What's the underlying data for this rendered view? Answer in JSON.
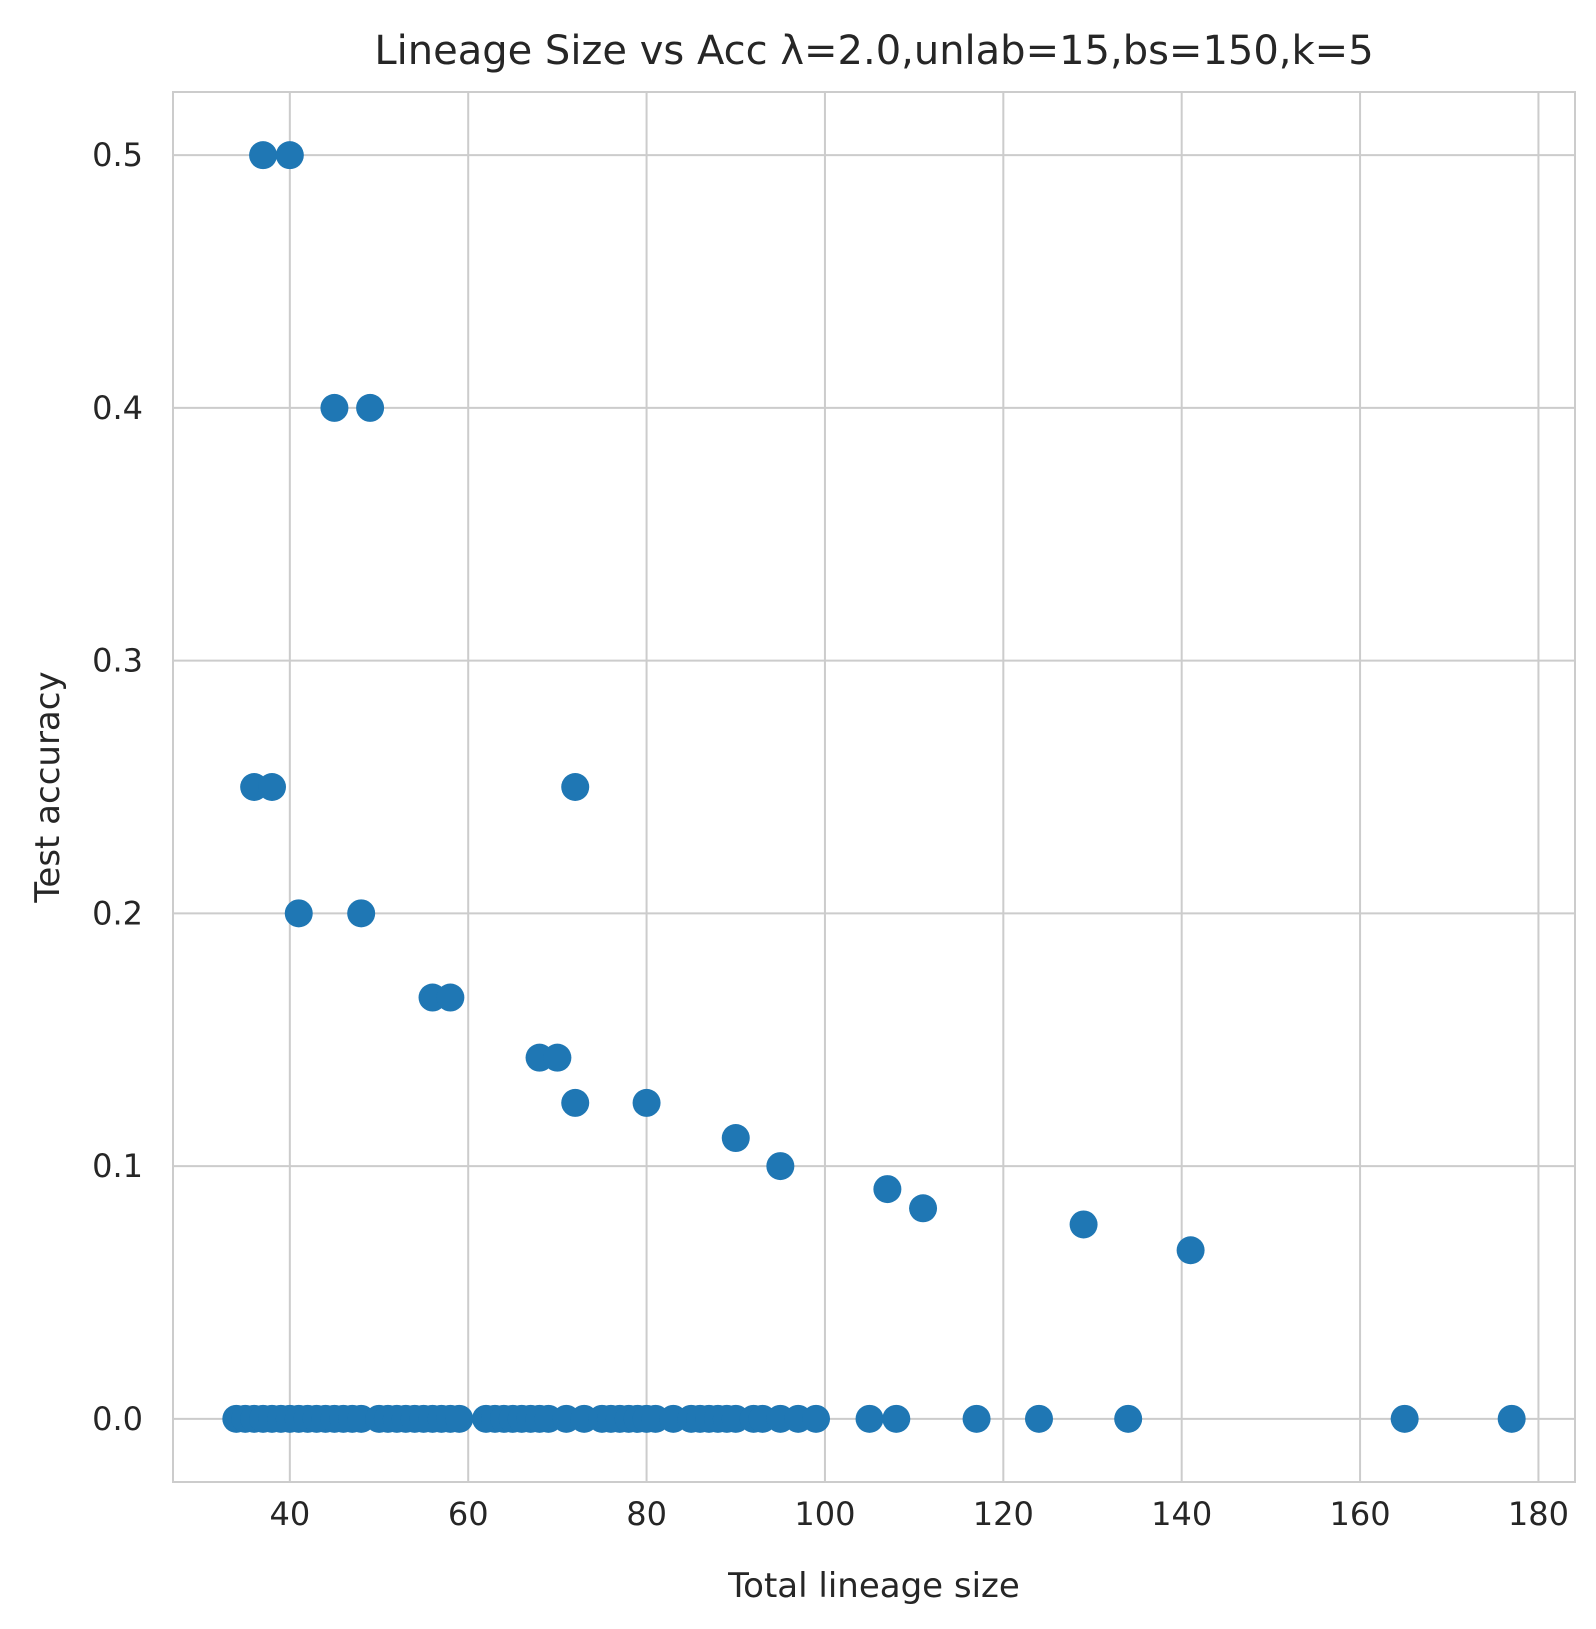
{
  "chart_data": {
    "type": "scatter",
    "title": "Lineage Size vs Acc λ=2.0,unlab=15,bs=150,k=5",
    "xlabel": "Total lineage size",
    "ylabel": "Test accuracy",
    "xlim": [
      26.9,
      184.1
    ],
    "ylim": [
      -0.025,
      0.525
    ],
    "xticks": [
      40,
      60,
      80,
      100,
      120,
      140,
      160,
      180
    ],
    "yticks": [
      0.0,
      0.1,
      0.2,
      0.3,
      0.4,
      0.5
    ],
    "xtick_labels": [
      "40",
      "60",
      "80",
      "100",
      "120",
      "140",
      "160",
      "180"
    ],
    "ytick_labels": [
      "0.0",
      "0.1",
      "0.2",
      "0.3",
      "0.4",
      "0.5"
    ],
    "grid": true,
    "colors": {
      "points": "#1f77b4",
      "grid": "#cccccc",
      "axes_edge": "#cccccc",
      "text": "#262626"
    },
    "series": [
      {
        "x": [
          37,
          40,
          45,
          49,
          36,
          38,
          72,
          41,
          48,
          56,
          58,
          68,
          70,
          72,
          80,
          90,
          95,
          107,
          111,
          129,
          141,
          34,
          35,
          36,
          37,
          38,
          39,
          40,
          41,
          42,
          43,
          44,
          45,
          46,
          47,
          48,
          50,
          51,
          52,
          53,
          54,
          55,
          56,
          57,
          58,
          59,
          62,
          63,
          64,
          65,
          66,
          67,
          68,
          69,
          71,
          73,
          75,
          76,
          77,
          78,
          79,
          80,
          81,
          83,
          85,
          86,
          87,
          88,
          89,
          90,
          92,
          93,
          95,
          97,
          99,
          105,
          108,
          117,
          124,
          134,
          165,
          177
        ],
        "y": [
          0.5,
          0.5,
          0.4,
          0.4,
          0.25,
          0.25,
          0.25,
          0.2,
          0.2,
          0.1667,
          0.1667,
          0.1429,
          0.1429,
          0.125,
          0.125,
          0.1111,
          0.1,
          0.0909,
          0.0833,
          0.0769,
          0.0667,
          0,
          0,
          0,
          0,
          0,
          0,
          0,
          0,
          0,
          0,
          0,
          0,
          0,
          0,
          0,
          0,
          0,
          0,
          0,
          0,
          0,
          0,
          0,
          0,
          0,
          0,
          0,
          0,
          0,
          0,
          0,
          0,
          0,
          0,
          0,
          0,
          0,
          0,
          0,
          0,
          0,
          0,
          0,
          0,
          0,
          0,
          0,
          0,
          0,
          0,
          0,
          0,
          0,
          0,
          0,
          0,
          0,
          0,
          0,
          0,
          0
        ]
      }
    ]
  }
}
